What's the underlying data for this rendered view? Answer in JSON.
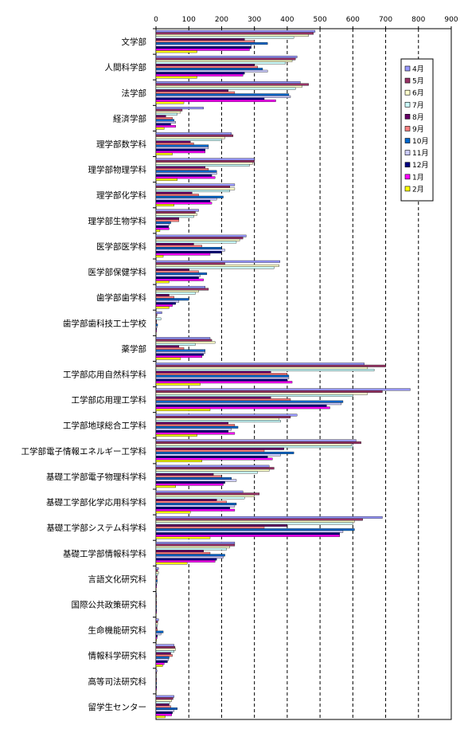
{
  "chart_data": {
    "type": "bar",
    "orientation": "horizontal",
    "xlim": [
      0,
      900
    ],
    "xticks": [
      0,
      100,
      200,
      300,
      400,
      500,
      600,
      700,
      800,
      900
    ],
    "grid": "vertical dashed",
    "legend_position": "right",
    "categories": [
      "文学部",
      "人間科学部",
      "法学部",
      "経済学部",
      "理学部数学科",
      "理学部物理学科",
      "理学部化学科",
      "理学部生物学科",
      "医学部医学科",
      "医学部保健学科",
      "歯学部歯学科",
      "歯学部歯科技工士学校",
      "薬学部",
      "工学部応用自然科学科",
      "工学部応用理工学科",
      "工学部地球総合工学科",
      "工学部電子情報エネルギー工学科",
      "基礎工学部電子物理科学科",
      "基礎工学部化学応用科学科",
      "基礎工学部システム科学科",
      "基礎工学部情報科学科",
      "言語文化研究科",
      "国際公共政策研究科",
      "生命機能研究科",
      "情報科学研究科",
      "高等司法研究科",
      "留学生センター"
    ],
    "series": [
      {
        "name": "4月",
        "color": "#9999ff",
        "values": [
          485,
          430,
          440,
          145,
          230,
          300,
          240,
          130,
          275,
          378,
          150,
          18,
          165,
          635,
          775,
          430,
          610,
          345,
          265,
          690,
          240,
          8,
          2,
          8,
          55,
          3,
          55
        ]
      },
      {
        "name": "5月",
        "color": "#993366",
        "values": [
          480,
          425,
          465,
          80,
          235,
          300,
          225,
          120,
          265,
          210,
          160,
          3,
          170,
          700,
          690,
          410,
          625,
          360,
          315,
          630,
          240,
          5,
          2,
          5,
          58,
          2,
          52
        ]
      },
      {
        "name": "6月",
        "color": "#ffffcc",
        "values": [
          465,
          415,
          445,
          75,
          210,
          295,
          240,
          125,
          255,
          375,
          130,
          2,
          180,
          645,
          645,
          375,
          595,
          345,
          300,
          605,
          225,
          8,
          2,
          5,
          60,
          2,
          48
        ]
      },
      {
        "name": "7月",
        "color": "#ccffff",
        "values": [
          420,
          395,
          425,
          65,
          200,
          285,
          225,
          115,
          245,
          360,
          120,
          15,
          120,
          665,
          600,
          380,
          600,
          310,
          270,
          600,
          215,
          5,
          2,
          4,
          55,
          2,
          42
        ]
      },
      {
        "name": "8月",
        "color": "#660066",
        "values": [
          270,
          300,
          220,
          30,
          105,
          150,
          110,
          70,
          115,
          100,
          40,
          2,
          70,
          350,
          350,
          220,
          390,
          175,
          185,
          400,
          145,
          3,
          2,
          3,
          45,
          2,
          40
        ]
      },
      {
        "name": "9月",
        "color": "#ff8080",
        "values": [
          300,
          310,
          240,
          50,
          115,
          160,
          130,
          70,
          140,
          130,
          55,
          2,
          85,
          400,
          410,
          240,
          330,
          200,
          215,
          330,
          165,
          3,
          2,
          4,
          50,
          2,
          45
        ]
      },
      {
        "name": "10月",
        "color": "#0066cc",
        "values": [
          340,
          325,
          405,
          55,
          160,
          185,
          205,
          45,
          200,
          155,
          100,
          5,
          150,
          405,
          570,
          250,
          420,
          230,
          245,
          605,
          210,
          4,
          2,
          22,
          40,
          2,
          65
        ]
      },
      {
        "name": "11月",
        "color": "#ccccff",
        "values": [
          290,
          340,
          410,
          60,
          160,
          185,
          185,
          40,
          210,
          135,
          70,
          3,
          150,
          405,
          565,
          230,
          380,
          245,
          240,
          570,
          205,
          3,
          2,
          15,
          38,
          2,
          55
        ]
      },
      {
        "name": "12月",
        "color": "#000080",
        "values": [
          290,
          270,
          330,
          45,
          150,
          170,
          165,
          38,
          200,
          130,
          60,
          2,
          145,
          400,
          520,
          220,
          340,
          210,
          225,
          560,
          185,
          2,
          2,
          4,
          35,
          2,
          50
        ]
      },
      {
        "name": "1月",
        "color": "#ff00ff",
        "values": [
          285,
          265,
          365,
          60,
          150,
          180,
          170,
          40,
          165,
          145,
          50,
          2,
          140,
          415,
          530,
          240,
          355,
          205,
          240,
          560,
          180,
          2,
          2,
          3,
          25,
          2,
          48
        ]
      },
      {
        "name": "2月",
        "color": "#ffff00",
        "values": [
          125,
          125,
          85,
          25,
          50,
          65,
          55,
          12,
          22,
          40,
          40,
          1,
          75,
          135,
          165,
          125,
          140,
          60,
          105,
          165,
          95,
          1,
          1,
          2,
          20,
          1,
          28
        ]
      }
    ]
  }
}
